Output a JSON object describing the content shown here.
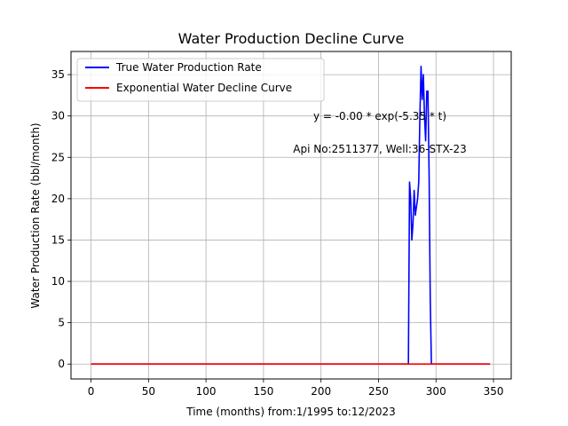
{
  "chart_data": {
    "type": "line",
    "title": "Water Production Decline Curve",
    "xlabel": "Time (months) from:1/1995 to:12/2023",
    "ylabel": "Water Production Rate (bbl/month)",
    "xlim": [
      -17.4,
      365.4
    ],
    "ylim": [
      -1.8,
      37.8
    ],
    "xticks": [
      0,
      50,
      100,
      150,
      200,
      250,
      300,
      350
    ],
    "yticks": [
      0,
      5,
      10,
      15,
      20,
      25,
      30,
      35
    ],
    "grid": true,
    "legend_position": "top-left",
    "annotations": [
      {
        "text": "y = -0.00 * exp(-5.35 * t)",
        "x": 250,
        "y": 29.5
      },
      {
        "text": "Api No:2511377, Well:36-STX-23",
        "x": 250,
        "y": 25.5
      }
    ],
    "series": [
      {
        "name": "True Water Production Rate",
        "color": "#0000ff",
        "x": [
          0,
          276,
          277,
          278,
          279,
          280,
          281,
          282,
          283,
          284,
          285,
          286,
          287,
          288,
          289,
          290,
          291,
          292,
          293,
          294,
          295,
          296,
          347
        ],
        "y": [
          0,
          0,
          22,
          20,
          15,
          17,
          21,
          18,
          19,
          20,
          22,
          30,
          36,
          32,
          35,
          30,
          27,
          33,
          33,
          23,
          8,
          0,
          0
        ]
      },
      {
        "name": "Exponential Water Decline Curve",
        "color": "#ff0000",
        "x": [
          0,
          347
        ],
        "y": [
          0,
          0
        ]
      }
    ]
  }
}
